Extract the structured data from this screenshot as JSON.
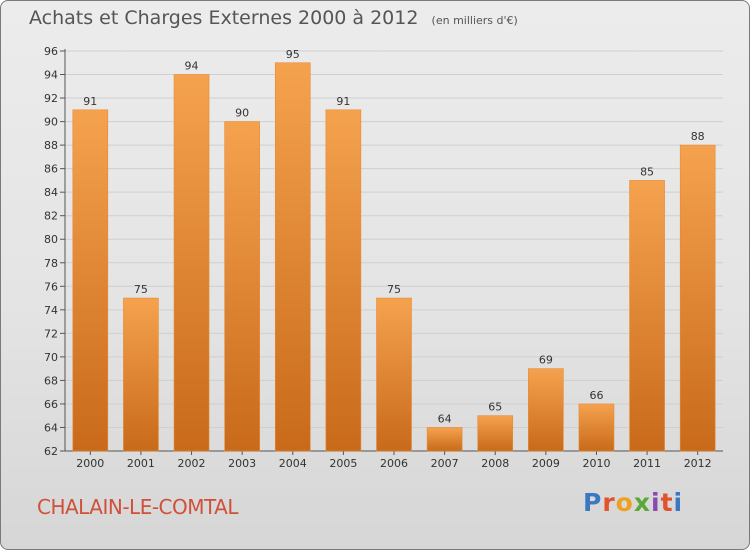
{
  "header": {
    "title": "Achats et Charges Externes 2000 à 2012",
    "subtitle": "(en milliers d'€)"
  },
  "footer": {
    "place_name": "CHALAIN-LE-COMTAL",
    "logo_text": "Proxiti"
  },
  "colors": {
    "bar_top": "#f5a24e",
    "bar_bottom": "#c86a1a",
    "bar_edge": "#e88a35",
    "grid": "#cfcfcf",
    "place_name": "#d0503a",
    "logo_letters": [
      "#3a78c2",
      "#e2532c",
      "#f0a020",
      "#5aa838",
      "#8a49b0",
      "#e2532c",
      "#3a78c2"
    ]
  },
  "chart_data": {
    "type": "bar",
    "categories": [
      "2000",
      "2001",
      "2002",
      "2003",
      "2004",
      "2005",
      "2006",
      "2007",
      "2008",
      "2009",
      "2010",
      "2011",
      "2012"
    ],
    "values": [
      91,
      75,
      94,
      90,
      95,
      91,
      75,
      64,
      65,
      69,
      66,
      85,
      88
    ],
    "ylim": [
      62,
      96
    ],
    "yticks": [
      62,
      64,
      66,
      68,
      70,
      72,
      74,
      76,
      78,
      80,
      82,
      84,
      86,
      88,
      90,
      92,
      94,
      96
    ],
    "data_labels": true,
    "grid": true,
    "xlabel": "",
    "ylabel": ""
  }
}
